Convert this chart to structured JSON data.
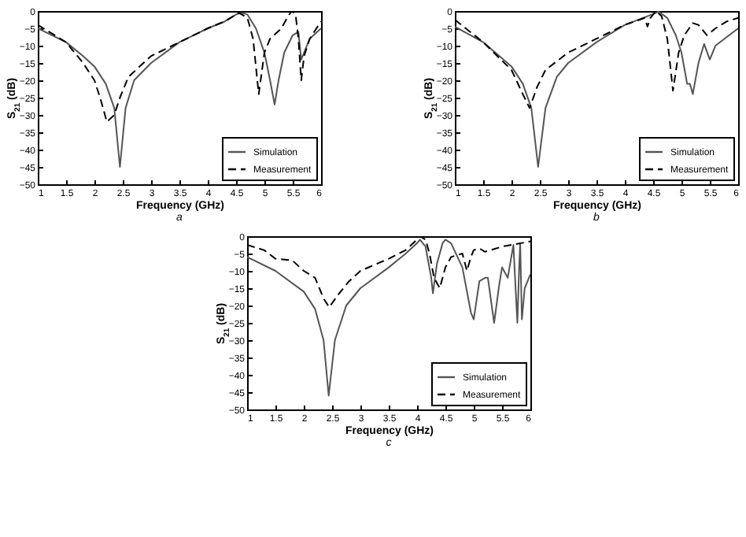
{
  "chart_data": [
    {
      "type": "line",
      "xlabel": "Frequency (GHz)",
      "ylabel": "S$_{21}$ (dB)",
      "annotations": [
        "a"
      ],
      "xlim": [
        1,
        6
      ],
      "ylim": [
        -50,
        0
      ],
      "xticks": [
        1,
        1.5,
        2,
        2.5,
        3,
        3.5,
        4,
        4.5,
        5,
        5.5,
        6
      ],
      "yticks": [
        -50,
        -45,
        -40,
        -35,
        -30,
        -25,
        -20,
        -15,
        -10,
        -5,
        0
      ],
      "legend": "bottom right",
      "grid": false,
      "series": [
        {
          "name": "Simulation",
          "color": "#555555",
          "line_style": "solid",
          "x": [
            1,
            1.5,
            1.8,
            2,
            2.2,
            2.35,
            2.45,
            2.55,
            2.7,
            3,
            3.5,
            4,
            4.3,
            4.5,
            4.6,
            4.7,
            4.85,
            5,
            5.1,
            5.18,
            5.25,
            5.35,
            5.5,
            5.6,
            5.65,
            5.7,
            5.8,
            6
          ],
          "values": [
            -5,
            -9,
            -13,
            -16,
            -21,
            -28,
            -45,
            -28,
            -20,
            -15,
            -9,
            -5,
            -3,
            -1,
            -0.5,
            -1,
            -5,
            -12,
            -20,
            -27,
            -20,
            -12,
            -7,
            -6,
            -14,
            -12,
            -8,
            -5
          ]
        },
        {
          "name": "Measurement",
          "color": "#000000",
          "line_style": "dashed",
          "x": [
            1,
            1.2,
            1.5,
            1.8,
            2,
            2.1,
            2.22,
            2.35,
            2.45,
            2.6,
            3,
            3.5,
            4,
            4.3,
            4.55,
            4.7,
            4.8,
            4.9,
            5,
            5.1,
            5.3,
            5.4,
            5.48,
            5.55,
            5.6,
            5.65,
            5.7,
            5.8,
            6
          ],
          "values": [
            -4,
            -6,
            -9,
            -15,
            -20,
            -25,
            -32,
            -30,
            -25,
            -19,
            -13,
            -9,
            -5,
            -3,
            -0.5,
            -2,
            -8,
            -24,
            -12,
            -8,
            -5,
            -2,
            0,
            -1,
            -8,
            -20,
            -13,
            -8,
            -3
          ]
        }
      ]
    },
    {
      "type": "line",
      "xlabel": "Frequency (GHz)",
      "ylabel": "S$_{21}$ (dB)",
      "annotations": [
        "b"
      ],
      "xlim": [
        1,
        6
      ],
      "ylim": [
        -50,
        0
      ],
      "xticks": [
        1,
        1.5,
        2,
        2.5,
        3,
        3.5,
        4,
        4.5,
        5,
        5.5,
        6
      ],
      "yticks": [
        -50,
        -45,
        -40,
        -35,
        -30,
        -25,
        -20,
        -15,
        -10,
        -5,
        0
      ],
      "legend": "bottom right",
      "grid": false,
      "series": [
        {
          "name": "Simulation",
          "color": "#555555",
          "line_style": "solid",
          "x": [
            1,
            1.5,
            2,
            2.2,
            2.35,
            2.47,
            2.6,
            2.8,
            3,
            3.5,
            4,
            4.4,
            4.6,
            4.75,
            4.9,
            5,
            5.1,
            5.15,
            5.2,
            5.3,
            5.4,
            5.5,
            5.6,
            6
          ],
          "values": [
            -4.5,
            -9,
            -16,
            -21,
            -28,
            -45,
            -28,
            -19,
            -15,
            -9,
            -4,
            -1.5,
            -0.2,
            -2,
            -7,
            -12,
            -21,
            -21,
            -24,
            -15,
            -9.5,
            -14,
            -10,
            -5
          ]
        },
        {
          "name": "Measurement",
          "color": "#000000",
          "line_style": "dashed",
          "x": [
            1,
            1.5,
            2,
            2.2,
            2.32,
            2.45,
            2.6,
            3,
            3.5,
            4,
            4.35,
            4.4,
            4.45,
            4.55,
            4.65,
            4.75,
            4.85,
            4.95,
            5.05,
            5.2,
            5.3,
            5.45,
            5.6,
            5.8,
            6
          ],
          "values": [
            -2.5,
            -9,
            -17,
            -24,
            -28,
            -22,
            -17,
            -12,
            -8,
            -4,
            -2,
            -4.5,
            -2,
            0,
            -1.5,
            -8,
            -23,
            -12,
            -7,
            -3.5,
            -4,
            -7,
            -5,
            -3,
            -2
          ]
        }
      ]
    },
    {
      "type": "line",
      "xlabel": "Frequency (GHz)",
      "ylabel": "S$_{21}$ (dB)",
      "annotations": [
        "c"
      ],
      "xlim": [
        1,
        6
      ],
      "ylim": [
        -50,
        0
      ],
      "xticks": [
        1,
        1.5,
        2,
        2.5,
        3,
        3.5,
        4,
        4.5,
        5,
        5.5,
        6
      ],
      "yticks": [
        -50,
        -45,
        -40,
        -35,
        -30,
        -25,
        -20,
        -15,
        -10,
        -5,
        0
      ],
      "legend": "bottom right",
      "grid": false,
      "series": [
        {
          "name": "Simulation",
          "color": "#555555",
          "line_style": "solid",
          "x": [
            1,
            1.5,
            2,
            2.2,
            2.35,
            2.44,
            2.55,
            2.75,
            3,
            3.5,
            3.8,
            4,
            4.05,
            4.15,
            4.25,
            4.28,
            4.35,
            4.45,
            4.5,
            4.6,
            4.8,
            4.95,
            5,
            5.1,
            5.2,
            5.25,
            5.3,
            5.36,
            5.45,
            5.5,
            5.6,
            5.7,
            5.77,
            5.8,
            5.82,
            5.85,
            5.9,
            6
          ],
          "values": [
            -6,
            -10,
            -16,
            -21,
            -30,
            -46,
            -30,
            -20,
            -15,
            -9,
            -5,
            -2,
            -1,
            -3,
            -12,
            -16.5,
            -8,
            -2,
            -1,
            -2,
            -9,
            -22,
            -24,
            -13,
            -12,
            -12,
            -18,
            -25,
            -14,
            -9,
            -12,
            -2.5,
            -25,
            -10,
            -2,
            -24,
            -15,
            -11
          ]
        },
        {
          "name": "Measurement",
          "color": "#000000",
          "line_style": "dashed",
          "x": [
            1,
            1.3,
            1.5,
            1.8,
            2,
            2.2,
            2.35,
            2.45,
            2.6,
            2.8,
            3,
            3.5,
            3.8,
            4,
            4.05,
            4.15,
            4.22,
            4.3,
            4.4,
            4.5,
            4.6,
            4.8,
            4.88,
            4.95,
            5,
            5.1,
            5.2,
            5.5,
            6
          ],
          "values": [
            -2.5,
            -4,
            -6.5,
            -7,
            -10,
            -12,
            -18,
            -20.5,
            -17,
            -13,
            -10,
            -6.5,
            -4,
            -1,
            0,
            -1,
            -5,
            -12,
            -15,
            -9,
            -6,
            -5,
            -10,
            -6,
            -4,
            -3.5,
            -4.5,
            -3,
            -1.5
          ]
        }
      ]
    }
  ]
}
